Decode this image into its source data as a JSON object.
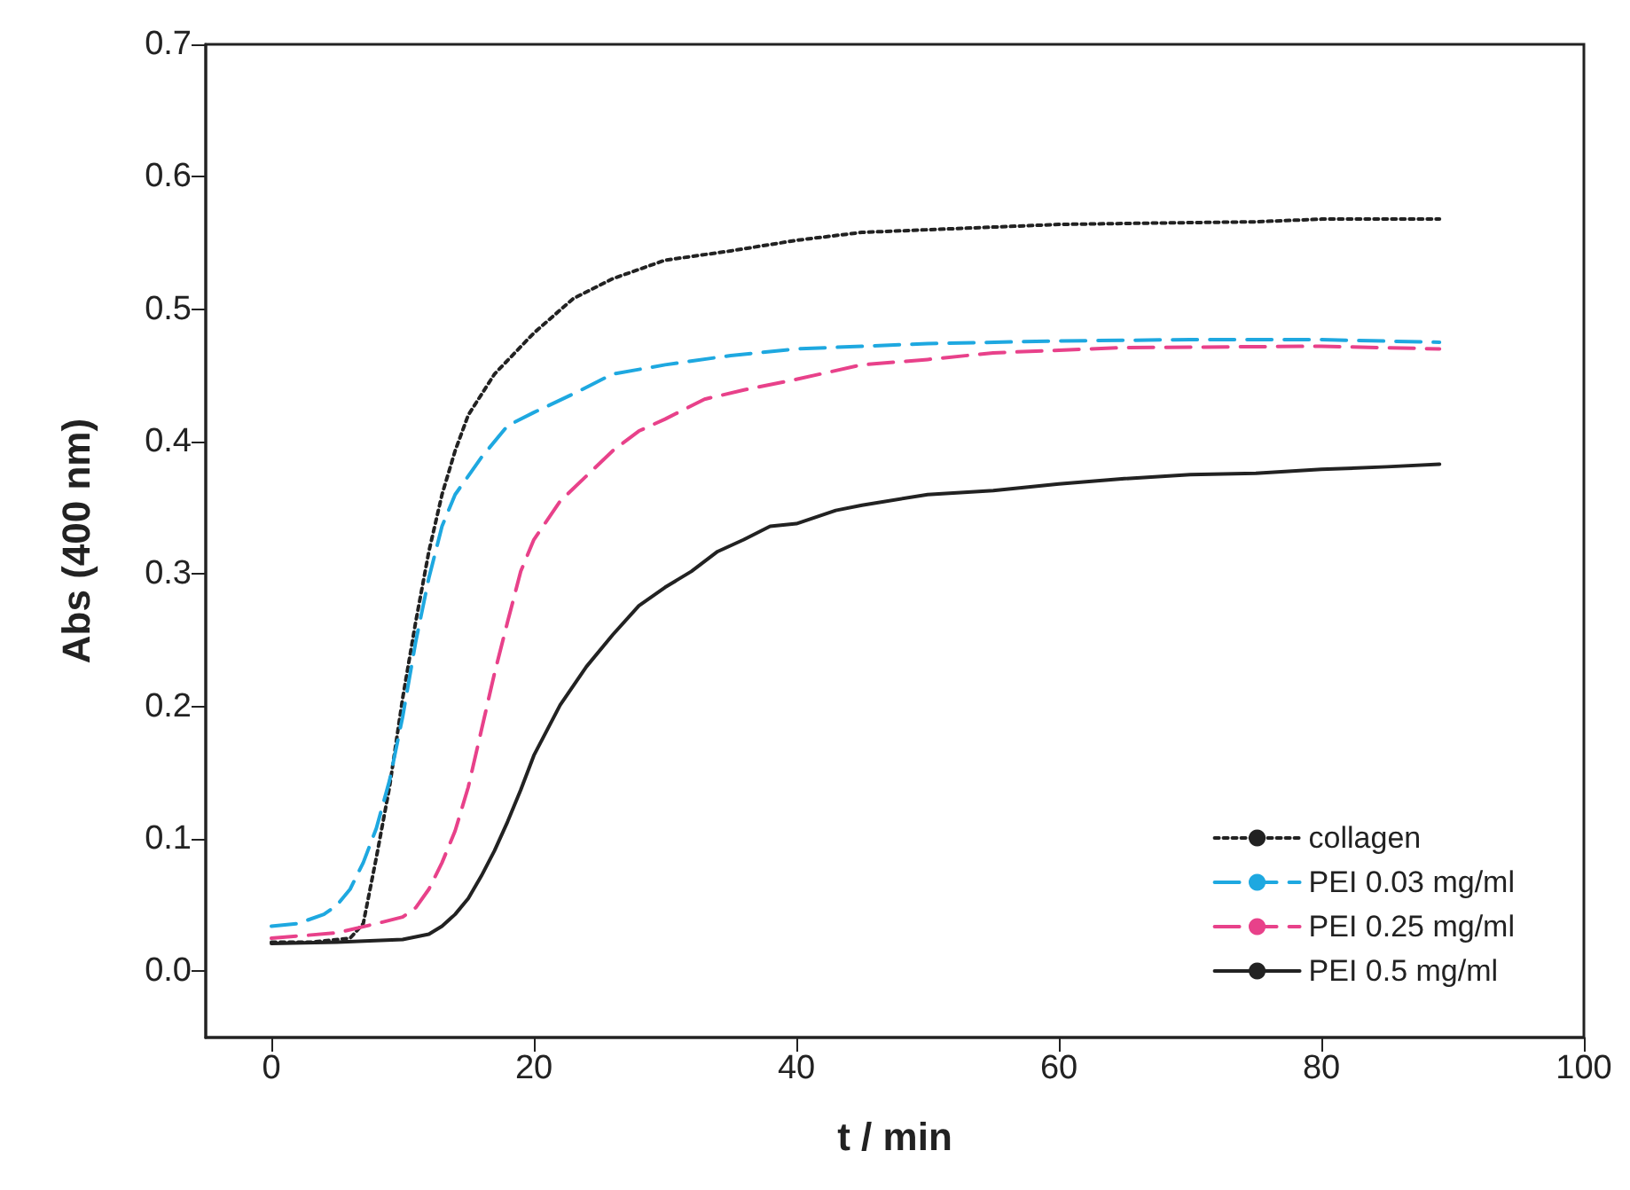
{
  "chart_data": {
    "type": "line",
    "xlabel": "t / min",
    "ylabel": "Abs (400 nm)",
    "xlim": [
      -5,
      100
    ],
    "xticks": [
      0,
      20,
      40,
      60,
      80,
      100
    ],
    "ylim": [
      -0.05,
      0.7
    ],
    "yticks": [
      {
        "value": 0,
        "label": "0.0"
      },
      {
        "value": 0.1,
        "label": "0.1"
      },
      {
        "value": 0.2,
        "label": "0.2"
      },
      {
        "value": 0.3,
        "label": "0.3"
      },
      {
        "value": 0.4,
        "label": "0.4"
      },
      {
        "value": 0.5,
        "label": "0.5"
      },
      {
        "value": 0.6,
        "label": "0.6"
      },
      {
        "value": 0.7,
        "label": "0.7"
      }
    ],
    "grid": false,
    "legend": "bottom right",
    "marker": "none",
    "series": [
      {
        "name": "collagen",
        "color": "#222222",
        "line_style": "dotted",
        "x": [
          0,
          3,
          6,
          7,
          8,
          9,
          10,
          11,
          12,
          13,
          14,
          15,
          17,
          20,
          23,
          26,
          30,
          35,
          40,
          45,
          50,
          55,
          60,
          67,
          75,
          80,
          85,
          89
        ],
        "values": [
          0.022,
          0.022,
          0.025,
          0.036,
          0.086,
          0.139,
          0.206,
          0.264,
          0.317,
          0.36,
          0.393,
          0.42,
          0.451,
          0.482,
          0.508,
          0.523,
          0.537,
          0.544,
          0.552,
          0.558,
          0.56,
          0.562,
          0.564,
          0.565,
          0.566,
          0.568,
          0.568,
          0.568
        ]
      },
      {
        "name": "PEI 0.03 mg/ml",
        "color": "#1ea8e0",
        "line_style": "dashed",
        "x": [
          0,
          2,
          4,
          5,
          6,
          7,
          8,
          9,
          10,
          11,
          12,
          13,
          14,
          16,
          18,
          20,
          23,
          26,
          30,
          35,
          40,
          45,
          50,
          60,
          70,
          80,
          89
        ],
        "values": [
          0.034,
          0.036,
          0.043,
          0.05,
          0.062,
          0.082,
          0.108,
          0.144,
          0.192,
          0.249,
          0.297,
          0.336,
          0.36,
          0.388,
          0.412,
          0.422,
          0.436,
          0.451,
          0.458,
          0.465,
          0.47,
          0.472,
          0.474,
          0.476,
          0.477,
          0.477,
          0.475
        ]
      },
      {
        "name": "PEI 0.25 mg/ml",
        "color": "#e8418a",
        "line_style": "dashed",
        "x": [
          0,
          5,
          8,
          10,
          11,
          12,
          13,
          14,
          15,
          16,
          17,
          18,
          19,
          20,
          22,
          24,
          26,
          28,
          30,
          33,
          36,
          40,
          45,
          50,
          55,
          65,
          80,
          89
        ],
        "values": [
          0.025,
          0.029,
          0.036,
          0.041,
          0.048,
          0.062,
          0.082,
          0.106,
          0.139,
          0.182,
          0.225,
          0.264,
          0.302,
          0.326,
          0.355,
          0.374,
          0.393,
          0.408,
          0.417,
          0.432,
          0.439,
          0.447,
          0.458,
          0.462,
          0.467,
          0.471,
          0.472,
          0.47
        ]
      },
      {
        "name": "PEI 0.5 mg/ml",
        "color": "#222222",
        "line_style": "solid",
        "x": [
          0,
          5,
          10,
          12,
          13,
          14,
          15,
          16,
          17,
          18,
          19,
          20,
          22,
          24,
          26,
          28,
          30,
          32,
          34,
          36,
          38,
          40,
          43,
          45,
          50,
          55,
          60,
          65,
          70,
          75,
          80,
          85,
          89
        ],
        "values": [
          0.021,
          0.022,
          0.024,
          0.028,
          0.034,
          0.043,
          0.055,
          0.072,
          0.091,
          0.113,
          0.137,
          0.163,
          0.201,
          0.23,
          0.254,
          0.276,
          0.29,
          0.302,
          0.317,
          0.326,
          0.336,
          0.338,
          0.348,
          0.352,
          0.36,
          0.363,
          0.368,
          0.372,
          0.375,
          0.376,
          0.379,
          0.381,
          0.383
        ]
      }
    ]
  }
}
